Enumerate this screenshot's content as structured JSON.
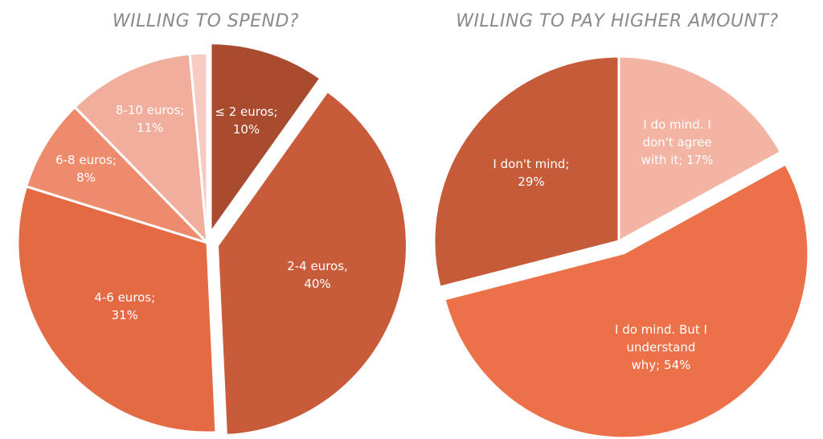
{
  "chart_data": [
    {
      "type": "pie",
      "title": "WILLING TO SPEND?",
      "categories": [
        "≤ 2 euros;",
        "2-4 euros,",
        "4-6 euros;",
        "6-8 euros;",
        "8-10 euros;",
        null
      ],
      "values": [
        10,
        40,
        31,
        8,
        11,
        1.5
      ],
      "value_labels": [
        "10%",
        "40%",
        "31%",
        "8%",
        "11%",
        null
      ],
      "colors": [
        "#a94b2f",
        "#c85c3a",
        "#e46a44",
        "#ee8b6d",
        "#f2ae9d",
        "#f7cbc1"
      ]
    },
    {
      "type": "pie",
      "title": "WILLING TO PAY HIGHER AMOUNT?",
      "categories": [
        "I do mind. I don't agree with it;",
        "I do mind. But I understand why;",
        "I don't mind;"
      ],
      "values": [
        17,
        54,
        29
      ],
      "value_labels": [
        "17%",
        "54%",
        "29%"
      ],
      "colors": [
        "#f3b4a4",
        "#ed7148",
        "#c65b39"
      ]
    }
  ]
}
